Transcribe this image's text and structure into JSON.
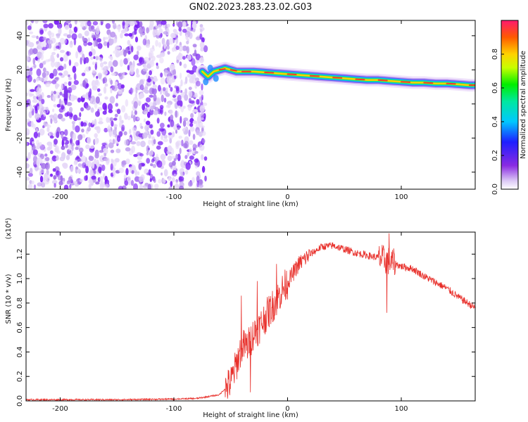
{
  "title": "GN02.2023.283.23.02.G03",
  "chart_data": [
    {
      "type": "heatmap",
      "xlabel": "Height of straight line (km)",
      "ylabel": "Frequency (Hz)",
      "xlim": [
        -230,
        165
      ],
      "ylim": [
        -50,
        49
      ],
      "xticks": [
        -200,
        -100,
        0,
        100
      ],
      "yticks": [
        -40,
        -20,
        0,
        20,
        40
      ],
      "noise_region_x": [
        -230,
        -72
      ],
      "ridge": {
        "x": [
          -75,
          -70,
          -65,
          -60,
          -55,
          -50,
          -45,
          -40,
          -30,
          -20,
          -10,
          0,
          10,
          20,
          30,
          40,
          50,
          60,
          70,
          80,
          90,
          100,
          110,
          120,
          130,
          140,
          150,
          160,
          165
        ],
        "y": [
          19,
          16,
          19,
          20,
          21,
          20,
          19,
          19,
          19,
          18.5,
          18,
          17.5,
          17,
          16.5,
          16,
          15.5,
          15,
          14.5,
          14,
          14,
          13.5,
          13,
          12.5,
          12.5,
          12,
          12,
          11.5,
          11,
          11
        ]
      },
      "colorbar": {
        "label": "Normalized spectral amplitude",
        "ticks": [
          "0.0",
          "0.2",
          "0.4",
          "0.6",
          "0.8"
        ],
        "range": [
          0,
          1
        ]
      }
    },
    {
      "type": "line",
      "xlabel": "Height of straight line (km)",
      "ylabel": "SNR (10 * v/v)",
      "scale_note": "(x10⁴)",
      "xlim": [
        -230,
        165
      ],
      "ylim": [
        0,
        1.38
      ],
      "xticks": [
        -200,
        -100,
        0,
        100
      ],
      "yticks": [
        "0.0",
        "0.2",
        "0.4",
        "0.6",
        "0.8",
        "1.0",
        "1.2"
      ],
      "color": "#e8302b",
      "x": [
        -230,
        -200,
        -150,
        -100,
        -80,
        -60,
        -50,
        -45,
        -40,
        -35,
        -30,
        -25,
        -20,
        -15,
        -10,
        -5,
        0,
        10,
        20,
        30,
        40,
        50,
        60,
        70,
        80,
        90,
        100,
        110,
        120,
        130,
        140,
        150,
        160,
        165
      ],
      "y": [
        0.01,
        0.01,
        0.01,
        0.015,
        0.02,
        0.05,
        0.15,
        0.3,
        0.45,
        0.45,
        0.55,
        0.6,
        0.68,
        0.75,
        0.82,
        0.9,
        0.97,
        1.12,
        1.2,
        1.26,
        1.27,
        1.24,
        1.21,
        1.19,
        1.17,
        1.14,
        1.1,
        1.08,
        1.02,
        0.97,
        0.92,
        0.85,
        0.79,
        0.76
      ]
    }
  ]
}
